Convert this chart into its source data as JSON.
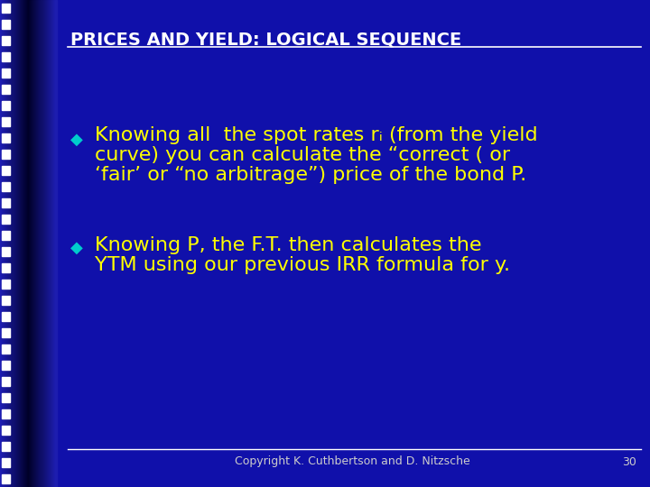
{
  "title": "PRICES AND YIELD: LOGICAL SEQUENCE",
  "title_color": "#FFFFFF",
  "title_fontsize": 14,
  "background_color": "#0000CC",
  "left_strip_color": "#3333DD",
  "left_dark_gradient": true,
  "text_color": "#FFFF00",
  "bullet_color": "#00CCCC",
  "footer_text": "Copyright K. Cuthbertson and D. Nitzsche",
  "footer_number": "30",
  "footer_color": "#CCCCCC",
  "footer_fontsize": 9,
  "line_color": "#FFFFFF",
  "bullet1_line1": "Knowing all  the spot rates rᵢ (from the yield",
  "bullet1_line2": "curve) you can calculate the “correct ( or",
  "bullet1_line3": "‘fair’ or “no arbitrage”) price of the bond P.",
  "bullet2_line1": "Knowing P, the F.T. then calculates the",
  "bullet2_line2": "YTM using our previous IRR formula for y.",
  "bullet_fontsize": 16
}
